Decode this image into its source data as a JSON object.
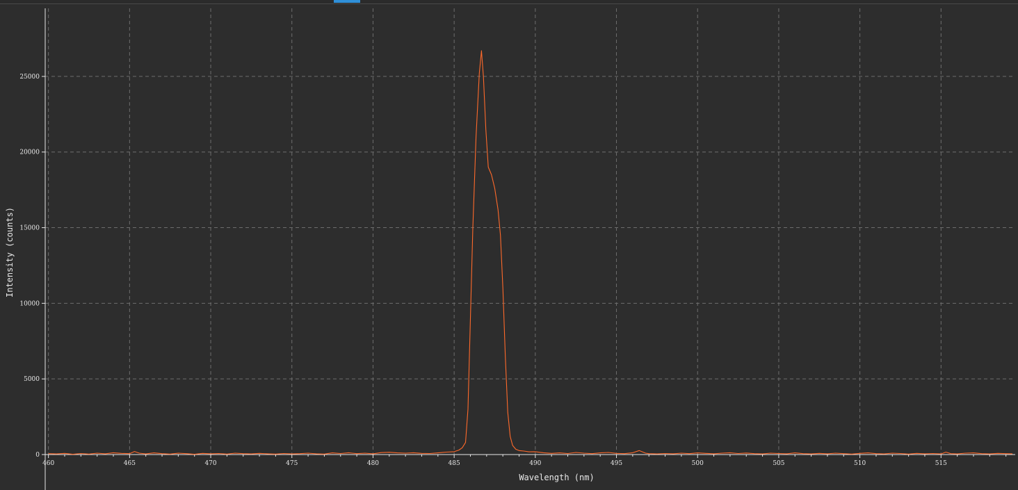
{
  "colors": {
    "background": "#2d2d2d",
    "grid": "#6e6e6e",
    "axis": "#e8e8e8",
    "series": "#ff6a2b",
    "tab_indicator": "#2f8fd8"
  },
  "chart_data": {
    "type": "line",
    "title": "",
    "xlabel": "Wavelength (nm)",
    "ylabel": "Intensity (counts)",
    "xlim": [
      459.8,
      519.4
    ],
    "ylim": [
      0,
      29500
    ],
    "x_ticks": [
      460,
      465,
      470,
      475,
      480,
      485,
      490,
      495,
      500,
      505,
      510,
      515
    ],
    "y_ticks": [
      0,
      5000,
      10000,
      15000,
      20000,
      25000
    ],
    "grid": true,
    "legend": "none",
    "series": [
      {
        "color": "#ff6a2b",
        "points": [
          [
            460.0,
            60
          ],
          [
            460.5,
            40
          ],
          [
            461.0,
            80
          ],
          [
            461.5,
            20
          ],
          [
            462.0,
            70
          ],
          [
            462.5,
            30
          ],
          [
            463.0,
            90
          ],
          [
            463.5,
            50
          ],
          [
            464.0,
            120
          ],
          [
            464.5,
            80
          ],
          [
            465.0,
            60
          ],
          [
            465.3,
            200
          ],
          [
            465.6,
            90
          ],
          [
            466.0,
            40
          ],
          [
            466.5,
            110
          ],
          [
            467.0,
            60
          ],
          [
            467.5,
            30
          ],
          [
            468.0,
            90
          ],
          [
            468.5,
            60
          ],
          [
            469.0,
            20
          ],
          [
            469.5,
            80
          ],
          [
            470.0,
            50
          ],
          [
            470.5,
            70
          ],
          [
            471.0,
            30
          ],
          [
            471.5,
            90
          ],
          [
            472.0,
            60
          ],
          [
            472.5,
            40
          ],
          [
            473.0,
            80
          ],
          [
            473.5,
            50
          ],
          [
            474.0,
            30
          ],
          [
            474.5,
            70
          ],
          [
            475.0,
            40
          ],
          [
            475.5,
            60
          ],
          [
            476.0,
            90
          ],
          [
            476.5,
            50
          ],
          [
            477.0,
            30
          ],
          [
            477.5,
            110
          ],
          [
            478.0,
            70
          ],
          [
            478.5,
            120
          ],
          [
            479.0,
            60
          ],
          [
            479.5,
            90
          ],
          [
            480.0,
            50
          ],
          [
            480.5,
            130
          ],
          [
            481.0,
            150
          ],
          [
            481.5,
            110
          ],
          [
            482.0,
            90
          ],
          [
            482.5,
            120
          ],
          [
            483.0,
            80
          ],
          [
            483.5,
            70
          ],
          [
            484.0,
            110
          ],
          [
            484.5,
            160
          ],
          [
            485.0,
            190
          ],
          [
            485.3,
            300
          ],
          [
            485.5,
            450
          ],
          [
            485.7,
            800
          ],
          [
            485.85,
            3000
          ],
          [
            486.0,
            9000
          ],
          [
            486.15,
            15000
          ],
          [
            486.35,
            21000
          ],
          [
            486.55,
            25200
          ],
          [
            486.68,
            26700
          ],
          [
            486.8,
            25000
          ],
          [
            486.95,
            21500
          ],
          [
            487.1,
            19000
          ],
          [
            487.3,
            18500
          ],
          [
            487.5,
            17600
          ],
          [
            487.7,
            16200
          ],
          [
            487.85,
            14500
          ],
          [
            488.0,
            11000
          ],
          [
            488.15,
            6500
          ],
          [
            488.3,
            2800
          ],
          [
            488.45,
            1200
          ],
          [
            488.6,
            600
          ],
          [
            488.8,
            350
          ],
          [
            489.0,
            260
          ],
          [
            489.3,
            230
          ],
          [
            489.6,
            180
          ],
          [
            490.0,
            190
          ],
          [
            490.5,
            120
          ],
          [
            491.0,
            80
          ],
          [
            491.5,
            110
          ],
          [
            492.0,
            70
          ],
          [
            492.5,
            140
          ],
          [
            493.0,
            90
          ],
          [
            493.5,
            60
          ],
          [
            494.0,
            110
          ],
          [
            494.5,
            140
          ],
          [
            495.0,
            80
          ],
          [
            495.5,
            60
          ],
          [
            496.0,
            120
          ],
          [
            496.4,
            260
          ],
          [
            496.8,
            90
          ],
          [
            497.0,
            60
          ],
          [
            497.5,
            40
          ],
          [
            498.0,
            70
          ],
          [
            498.5,
            50
          ],
          [
            499.0,
            90
          ],
          [
            499.5,
            60
          ],
          [
            500.0,
            110
          ],
          [
            500.5,
            80
          ],
          [
            501.0,
            50
          ],
          [
            501.5,
            90
          ],
          [
            502.0,
            120
          ],
          [
            502.5,
            70
          ],
          [
            503.0,
            100
          ],
          [
            503.5,
            60
          ],
          [
            504.0,
            40
          ],
          [
            504.5,
            90
          ],
          [
            505.0,
            70
          ],
          [
            505.5,
            50
          ],
          [
            506.0,
            110
          ],
          [
            506.5,
            60
          ],
          [
            507.0,
            40
          ],
          [
            507.5,
            80
          ],
          [
            508.0,
            50
          ],
          [
            508.5,
            90
          ],
          [
            509.0,
            60
          ],
          [
            509.5,
            30
          ],
          [
            510.0,
            80
          ],
          [
            510.5,
            110
          ],
          [
            511.0,
            60
          ],
          [
            511.5,
            40
          ],
          [
            512.0,
            90
          ],
          [
            512.5,
            70
          ],
          [
            513.0,
            30
          ],
          [
            513.5,
            80
          ],
          [
            514.0,
            50
          ],
          [
            514.5,
            70
          ],
          [
            515.0,
            40
          ],
          [
            515.3,
            160
          ],
          [
            515.6,
            60
          ],
          [
            516.0,
            40
          ],
          [
            516.5,
            90
          ],
          [
            517.0,
            110
          ],
          [
            517.5,
            60
          ],
          [
            518.0,
            40
          ],
          [
            518.5,
            80
          ],
          [
            519.0,
            60
          ],
          [
            519.4,
            50
          ]
        ]
      }
    ]
  }
}
